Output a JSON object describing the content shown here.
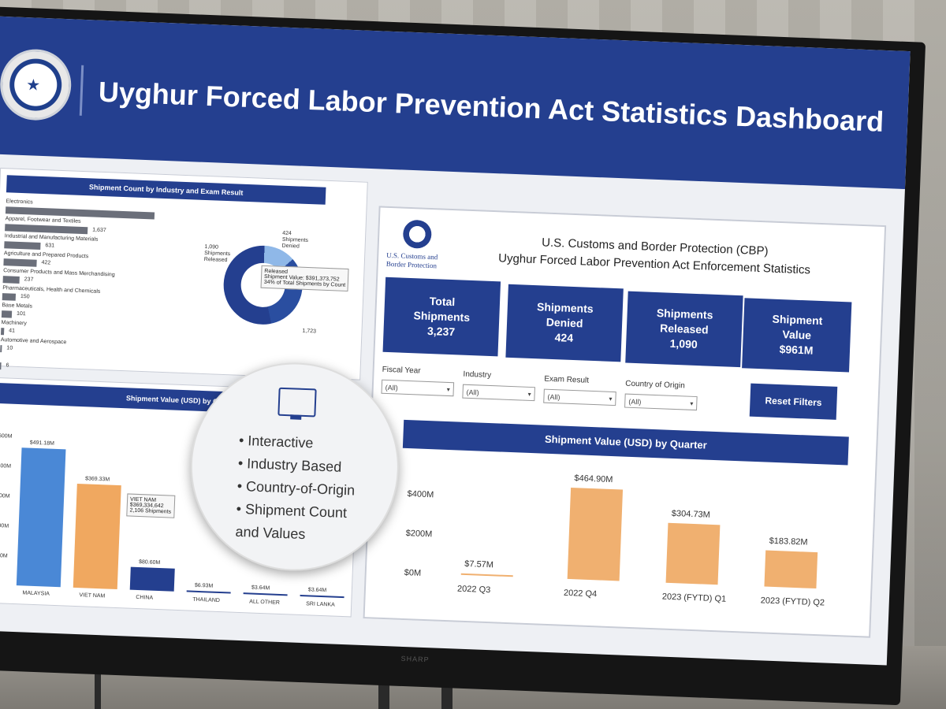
{
  "dashboard": {
    "title": "Uyghur Forced Labor Prevention Act Statistics Dashboard",
    "monitor_brand": "SHARP"
  },
  "industry_panel": {
    "title": "Shipment Count by Industry and Exam Result",
    "items": [
      {
        "label": "Electronics",
        "value": ""
      },
      {
        "label": "Apparel, Footwear and Textiles",
        "value": "1,637"
      },
      {
        "label": "Industrial and Manufacturing Materials",
        "value": "631"
      },
      {
        "label": "Agriculture and Prepared Products",
        "value": "422"
      },
      {
        "label": "Consumer Products and Mass Merchandising",
        "value": "237"
      },
      {
        "label": "Pharmaceuticals, Health and Chemicals",
        "value": "150"
      },
      {
        "label": "Base Metals",
        "value": "101"
      },
      {
        "label": "Machinery",
        "value": "41"
      },
      {
        "label": "Automotive and Aerospace",
        "value": "10"
      },
      {
        "label": "",
        "value": "6"
      }
    ],
    "bar_levels": [
      0.9,
      0.5,
      0.22,
      0.2,
      0.1,
      0.08,
      0.06,
      0.02,
      0.01,
      0.005
    ],
    "donut_left_label": "1,090 Shipments Released",
    "donut_top_label": "424 Shipments Denied",
    "donut_bottom_label": "1,723",
    "tooltip": {
      "line1": "Released",
      "line2": "Shipment Value: $391,373,752",
      "line3": "34% of Total Shipments by Count"
    }
  },
  "country_panel": {
    "title": "Shipment Value (USD) by Co",
    "y_ticks": [
      "$600M",
      "$400M",
      "$300M",
      "$200M",
      "$100M",
      "$0M"
    ],
    "tooltip": {
      "line1": "VIET NAM",
      "line2": "$369,334,642",
      "line3": "2,106 Shipments"
    }
  },
  "chart_data": [
    {
      "type": "bar",
      "title": "Shipment Value (USD) by Quarter",
      "categories": [
        "2022 Q3",
        "2022 Q4",
        "2023 (FYTD) Q1",
        "2023 (FYTD) Q2"
      ],
      "values": [
        7.57,
        464.9,
        304.73,
        183.82
      ],
      "data_labels": [
        "$7.57M",
        "$464.90M",
        "$304.73M",
        "$183.82M"
      ],
      "y_ticks": [
        "$400M",
        "$200M",
        "$0M"
      ],
      "ylim": [
        0,
        520
      ],
      "color": "#f0b070"
    },
    {
      "type": "bar",
      "title": "Shipment Value (USD) by Co",
      "categories": [
        "MALAYSIA",
        "VIET NAM",
        "CHINA",
        "THAILAND",
        "ALL OTHER",
        "SRI LANKA"
      ],
      "values": [
        491.18,
        369.33,
        80.6,
        6.93,
        3.64,
        3.64
      ],
      "data_labels": [
        "$491.18M",
        "$369.33M",
        "$80.60M",
        "$6.93M",
        "$3.64M",
        "$3.64M"
      ],
      "colors": [
        "#4a88d6",
        "#f0a860",
        "#243f8f",
        "#243f8f",
        "#243f8f",
        "#243f8f"
      ],
      "ylim": [
        0,
        560
      ]
    }
  ],
  "cbp_panel": {
    "agency_line1": "U.S. Customs and",
    "agency_line2": "Border Protection",
    "header_line1": "U.S. Customs and Border Protection (CBP)",
    "header_line2": "Uyghur Forced Labor Prevention Act Enforcement Statistics",
    "kpis": [
      {
        "label": "Total Shipments",
        "value": "3,237"
      },
      {
        "label": "Shipments Denied",
        "value": "424"
      },
      {
        "label": "Shipments Released",
        "value": "1,090"
      },
      {
        "label": "Shipment Value",
        "value": "$961M"
      }
    ],
    "filters": [
      {
        "label": "Fiscal Year",
        "value": "(All)"
      },
      {
        "label": "Industry",
        "value": "(All)"
      },
      {
        "label": "Exam Result",
        "value": "(All)"
      },
      {
        "label": "Country of Origin",
        "value": "(All)"
      }
    ],
    "reset_label": "Reset Filters"
  },
  "bubble": {
    "items": [
      "Interactive",
      "Industry Based",
      "Country-of-Origin",
      "Shipment Count",
      "and Values"
    ]
  }
}
